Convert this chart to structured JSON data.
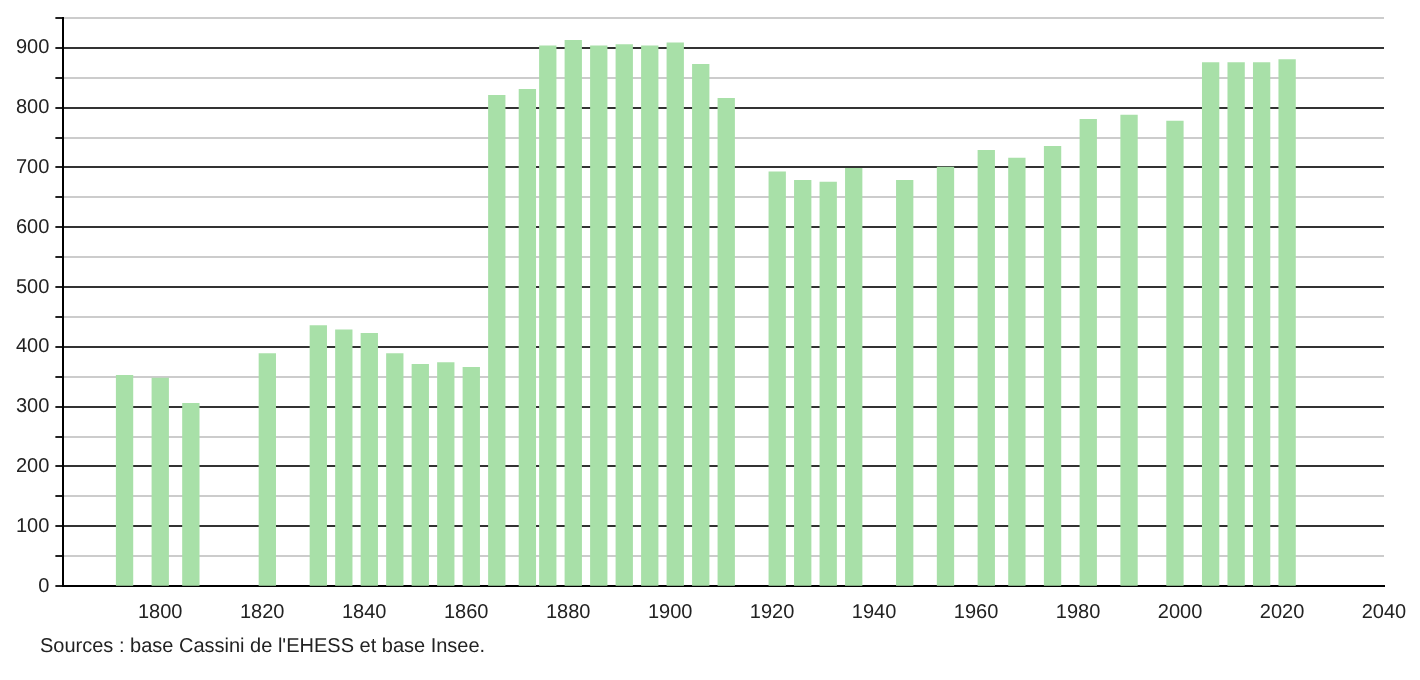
{
  "chart_data": {
    "type": "bar",
    "x": [
      1793,
      1800,
      1806,
      1821,
      1831,
      1836,
      1841,
      1846,
      1851,
      1856,
      1861,
      1866,
      1872,
      1876,
      1881,
      1886,
      1891,
      1896,
      1901,
      1906,
      1911,
      1921,
      1926,
      1931,
      1936,
      1946,
      1954,
      1962,
      1968,
      1975,
      1982,
      1990,
      1999,
      2006,
      2011,
      2016,
      2021
    ],
    "values": [
      352,
      347,
      305,
      388,
      435,
      428,
      422,
      388,
      370,
      373,
      365,
      820,
      830,
      903,
      912,
      903,
      905,
      903,
      908,
      872,
      815,
      692,
      678,
      675,
      698,
      678,
      700,
      728,
      715,
      735,
      780,
      787,
      777,
      875,
      875,
      875,
      880
    ],
    "color": "#a8e0a8",
    "xlim": [
      1781,
      2040
    ],
    "xticks": [
      1800,
      1820,
      1840,
      1860,
      1880,
      1900,
      1920,
      1940,
      1960,
      1980,
      2000,
      2020,
      2040
    ],
    "ylim": [
      0,
      950
    ],
    "yticks": [
      0,
      {
        "value": 50,
        "label": null
      },
      100,
      {
        "value": 150,
        "label": null
      },
      200,
      {
        "value": 250,
        "label": null
      },
      300,
      {
        "value": 350,
        "label": null
      },
      400,
      {
        "value": 450,
        "label": null
      },
      500,
      {
        "value": 550,
        "label": null
      },
      600,
      {
        "value": 650,
        "label": null
      },
      700,
      {
        "value": 750,
        "label": null
      },
      800,
      {
        "value": 850,
        "label": null
      },
      900,
      {
        "value": 950,
        "label": null
      }
    ],
    "grid": "y",
    "legend": false,
    "annotations": [
      "Sources : base Cassini de l'EHESS et base Insee."
    ]
  }
}
